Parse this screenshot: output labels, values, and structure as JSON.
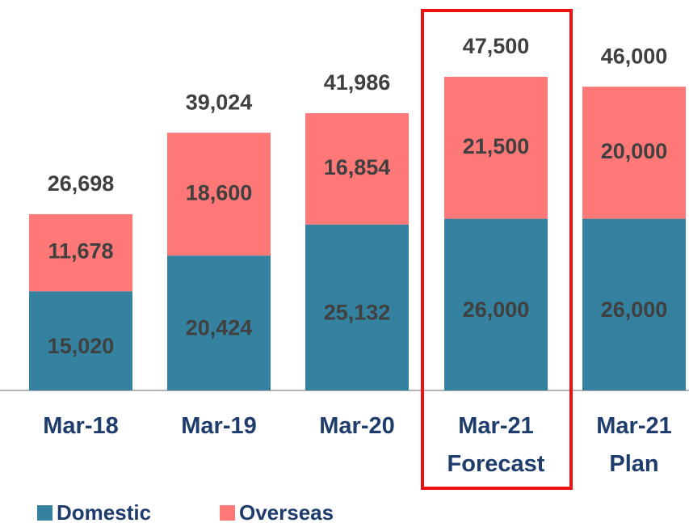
{
  "chart_data": {
    "type": "stacked_bar",
    "categories": [
      "Mar-18",
      "Mar-19",
      "Mar-20",
      "Mar-21 Forecast",
      "Mar-21 Plan"
    ],
    "series": [
      {
        "name": "Domestic",
        "color": "#34829f",
        "values": [
          15020,
          20424,
          25132,
          26000,
          26000
        ],
        "value_labels": [
          "15,020",
          "20,424",
          "25,132",
          "26,000",
          "26,000"
        ]
      },
      {
        "name": "Overseas",
        "color": "#ff7878",
        "values": [
          11678,
          18600,
          16854,
          21500,
          20000
        ],
        "value_labels": [
          "11,678",
          "18,600",
          "16,854",
          "21,500",
          "20,000"
        ]
      }
    ],
    "totals": [
      26698,
      39024,
      41986,
      47500,
      46000
    ],
    "total_labels": [
      "26,698",
      "39,024",
      "41,986",
      "47,500",
      "46,000"
    ],
    "legend": "bottom-left"
  }
}
